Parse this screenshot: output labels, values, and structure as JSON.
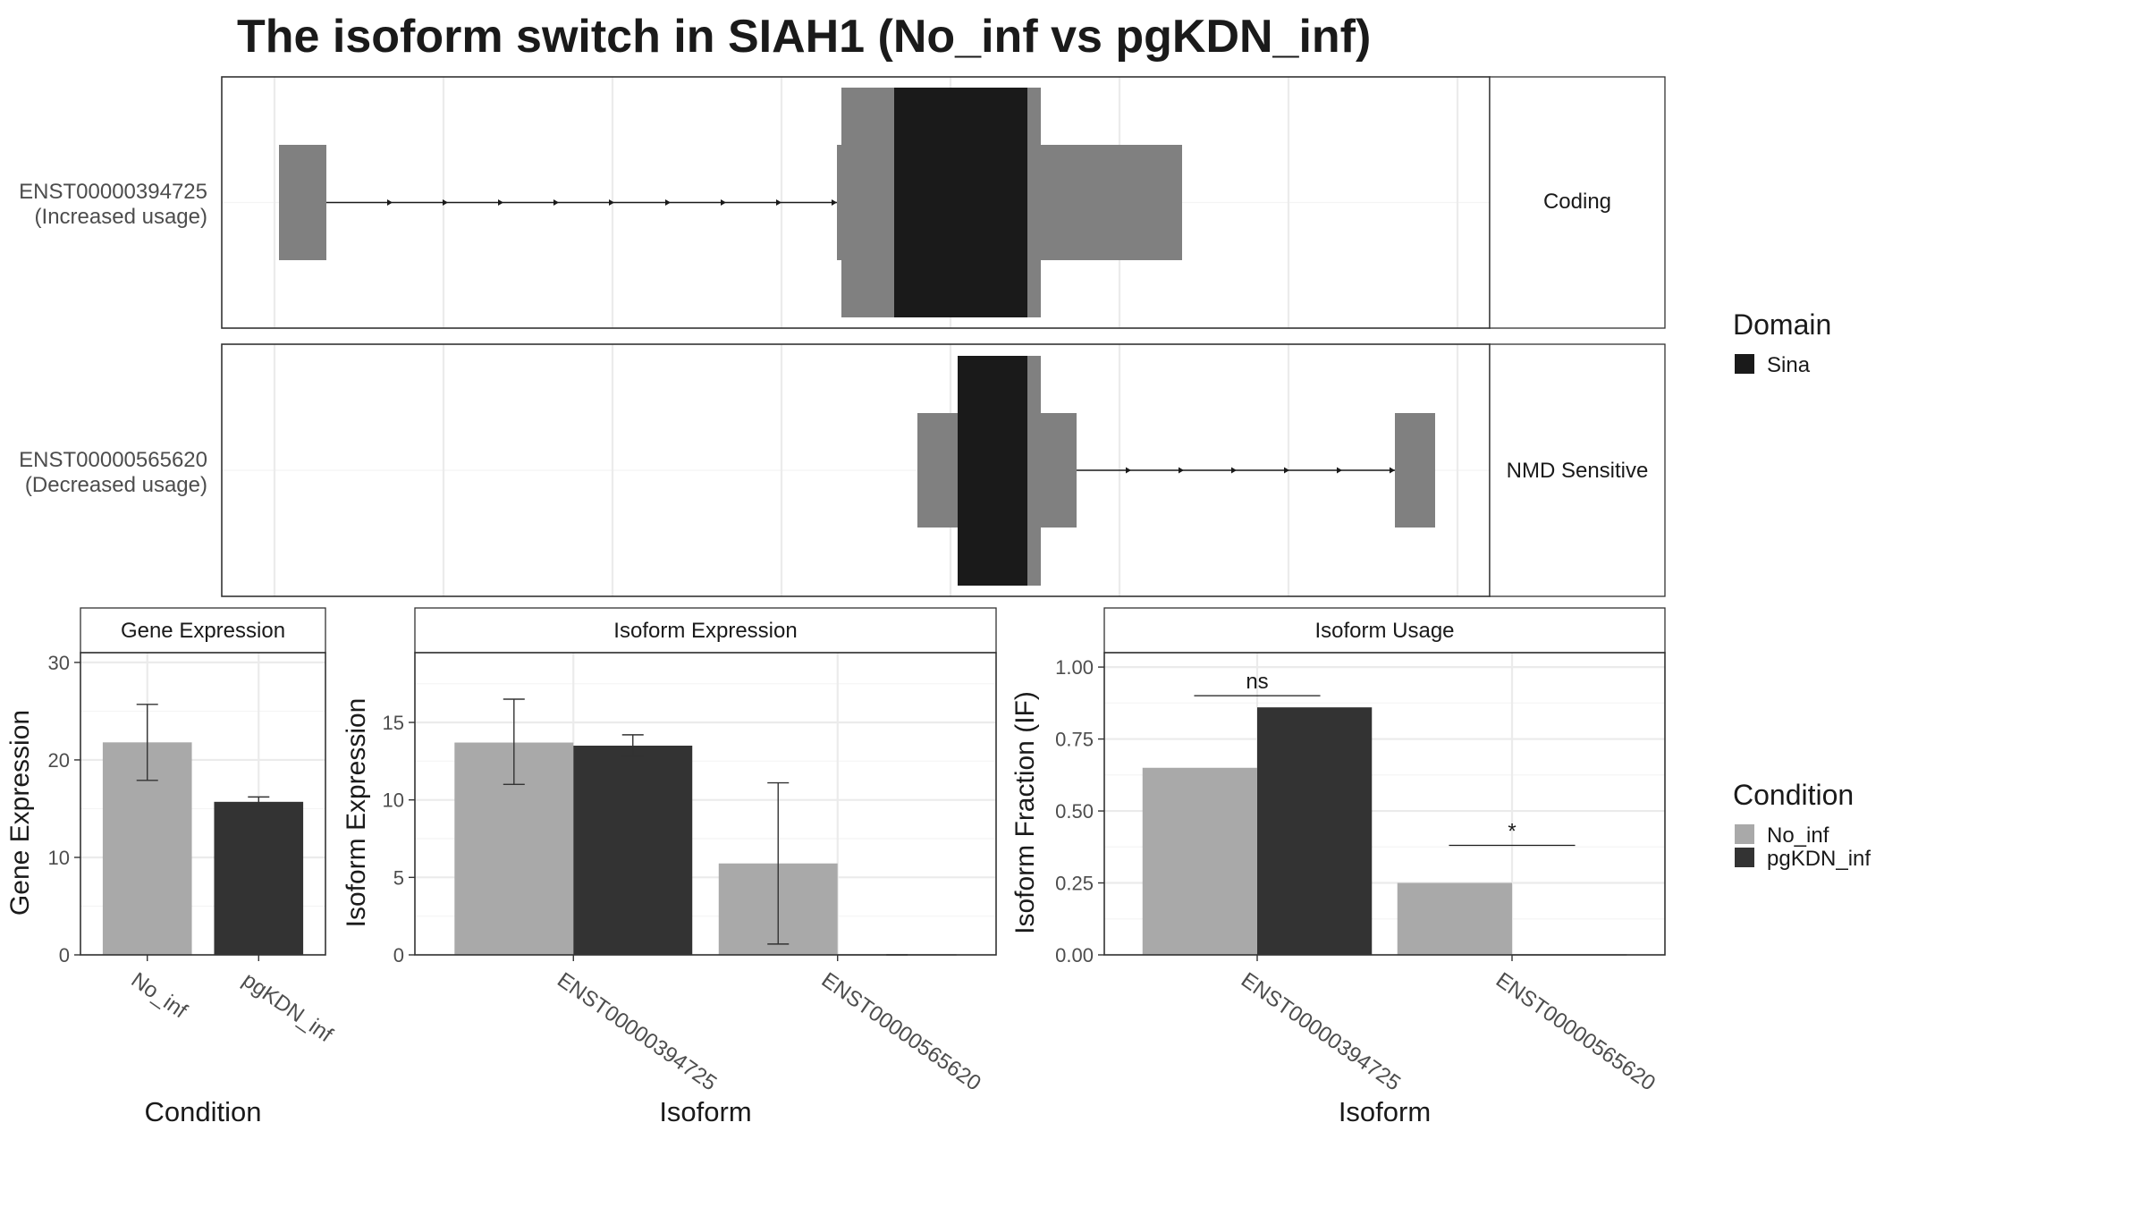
{
  "title": "The isoform switch in SIAH1 (No_inf vs pgKDN_inf)",
  "structure": {
    "tracks": [
      {
        "id": "ENST00000394725",
        "label_lines": [
          "ENST00000394725",
          "(Increased usage)"
        ],
        "facet": "Coding",
        "strand": "+"
      },
      {
        "id": "ENST00000565620",
        "label_lines": [
          "ENST00000565620",
          "(Decreased usage)"
        ],
        "facet": "NMD Sensitive",
        "strand": "+"
      }
    ]
  },
  "legends": {
    "domain": {
      "title": "Domain",
      "items": [
        {
          "label": "Sina",
          "color": "#1a1a1a"
        }
      ]
    },
    "condition": {
      "title": "Condition",
      "items": [
        {
          "label": "No_inf",
          "color": "#a9a9a9"
        },
        {
          "label": "pgKDN_inf",
          "color": "#333333"
        }
      ]
    }
  },
  "colors": {
    "exon": "#808080",
    "domain": "#1a1a1a",
    "no_inf": "#a9a9a9",
    "pgkdn_inf": "#333333"
  },
  "chart_data": [
    {
      "type": "bar",
      "title": "Gene Expression",
      "xlabel": "Condition",
      "ylabel": "Gene Expression",
      "categories": [
        "No_inf",
        "pgKDN_inf"
      ],
      "values": [
        21.8,
        15.7
      ],
      "errors": [
        [
          17.9,
          25.7
        ],
        [
          15.2,
          16.2
        ]
      ],
      "yticks": [
        0,
        10,
        20,
        30
      ],
      "ylim": [
        0,
        31
      ]
    },
    {
      "type": "bar",
      "title": "Isoform Expression",
      "xlabel": "Isoform",
      "ylabel": "Isoform Expression",
      "categories": [
        "ENST00000394725",
        "ENST00000565620"
      ],
      "series": [
        {
          "name": "No_inf",
          "values": [
            13.7,
            5.9
          ],
          "errors": [
            [
              11.0,
              16.5
            ],
            [
              0.7,
              11.1
            ]
          ]
        },
        {
          "name": "pgKDN_inf",
          "values": [
            13.5,
            0.0
          ],
          "errors": [
            [
              12.8,
              14.2
            ],
            [
              0.0,
              0.0
            ]
          ]
        }
      ],
      "yticks": [
        0,
        5,
        10,
        15
      ],
      "ylim": [
        0,
        19.5
      ]
    },
    {
      "type": "bar",
      "title": "Isoform Usage",
      "xlabel": "Isoform",
      "ylabel": "Isoform Fraction (IF)",
      "categories": [
        "ENST00000394725",
        "ENST00000565620"
      ],
      "series": [
        {
          "name": "No_inf",
          "values": [
            0.65,
            0.25
          ]
        },
        {
          "name": "pgKDN_inf",
          "values": [
            0.86,
            0.0
          ]
        }
      ],
      "significance": [
        "ns",
        "*"
      ],
      "yticks": [
        "0.00",
        "0.25",
        "0.50",
        "0.75",
        "1.00"
      ],
      "ylim": [
        0,
        1.05
      ]
    }
  ]
}
